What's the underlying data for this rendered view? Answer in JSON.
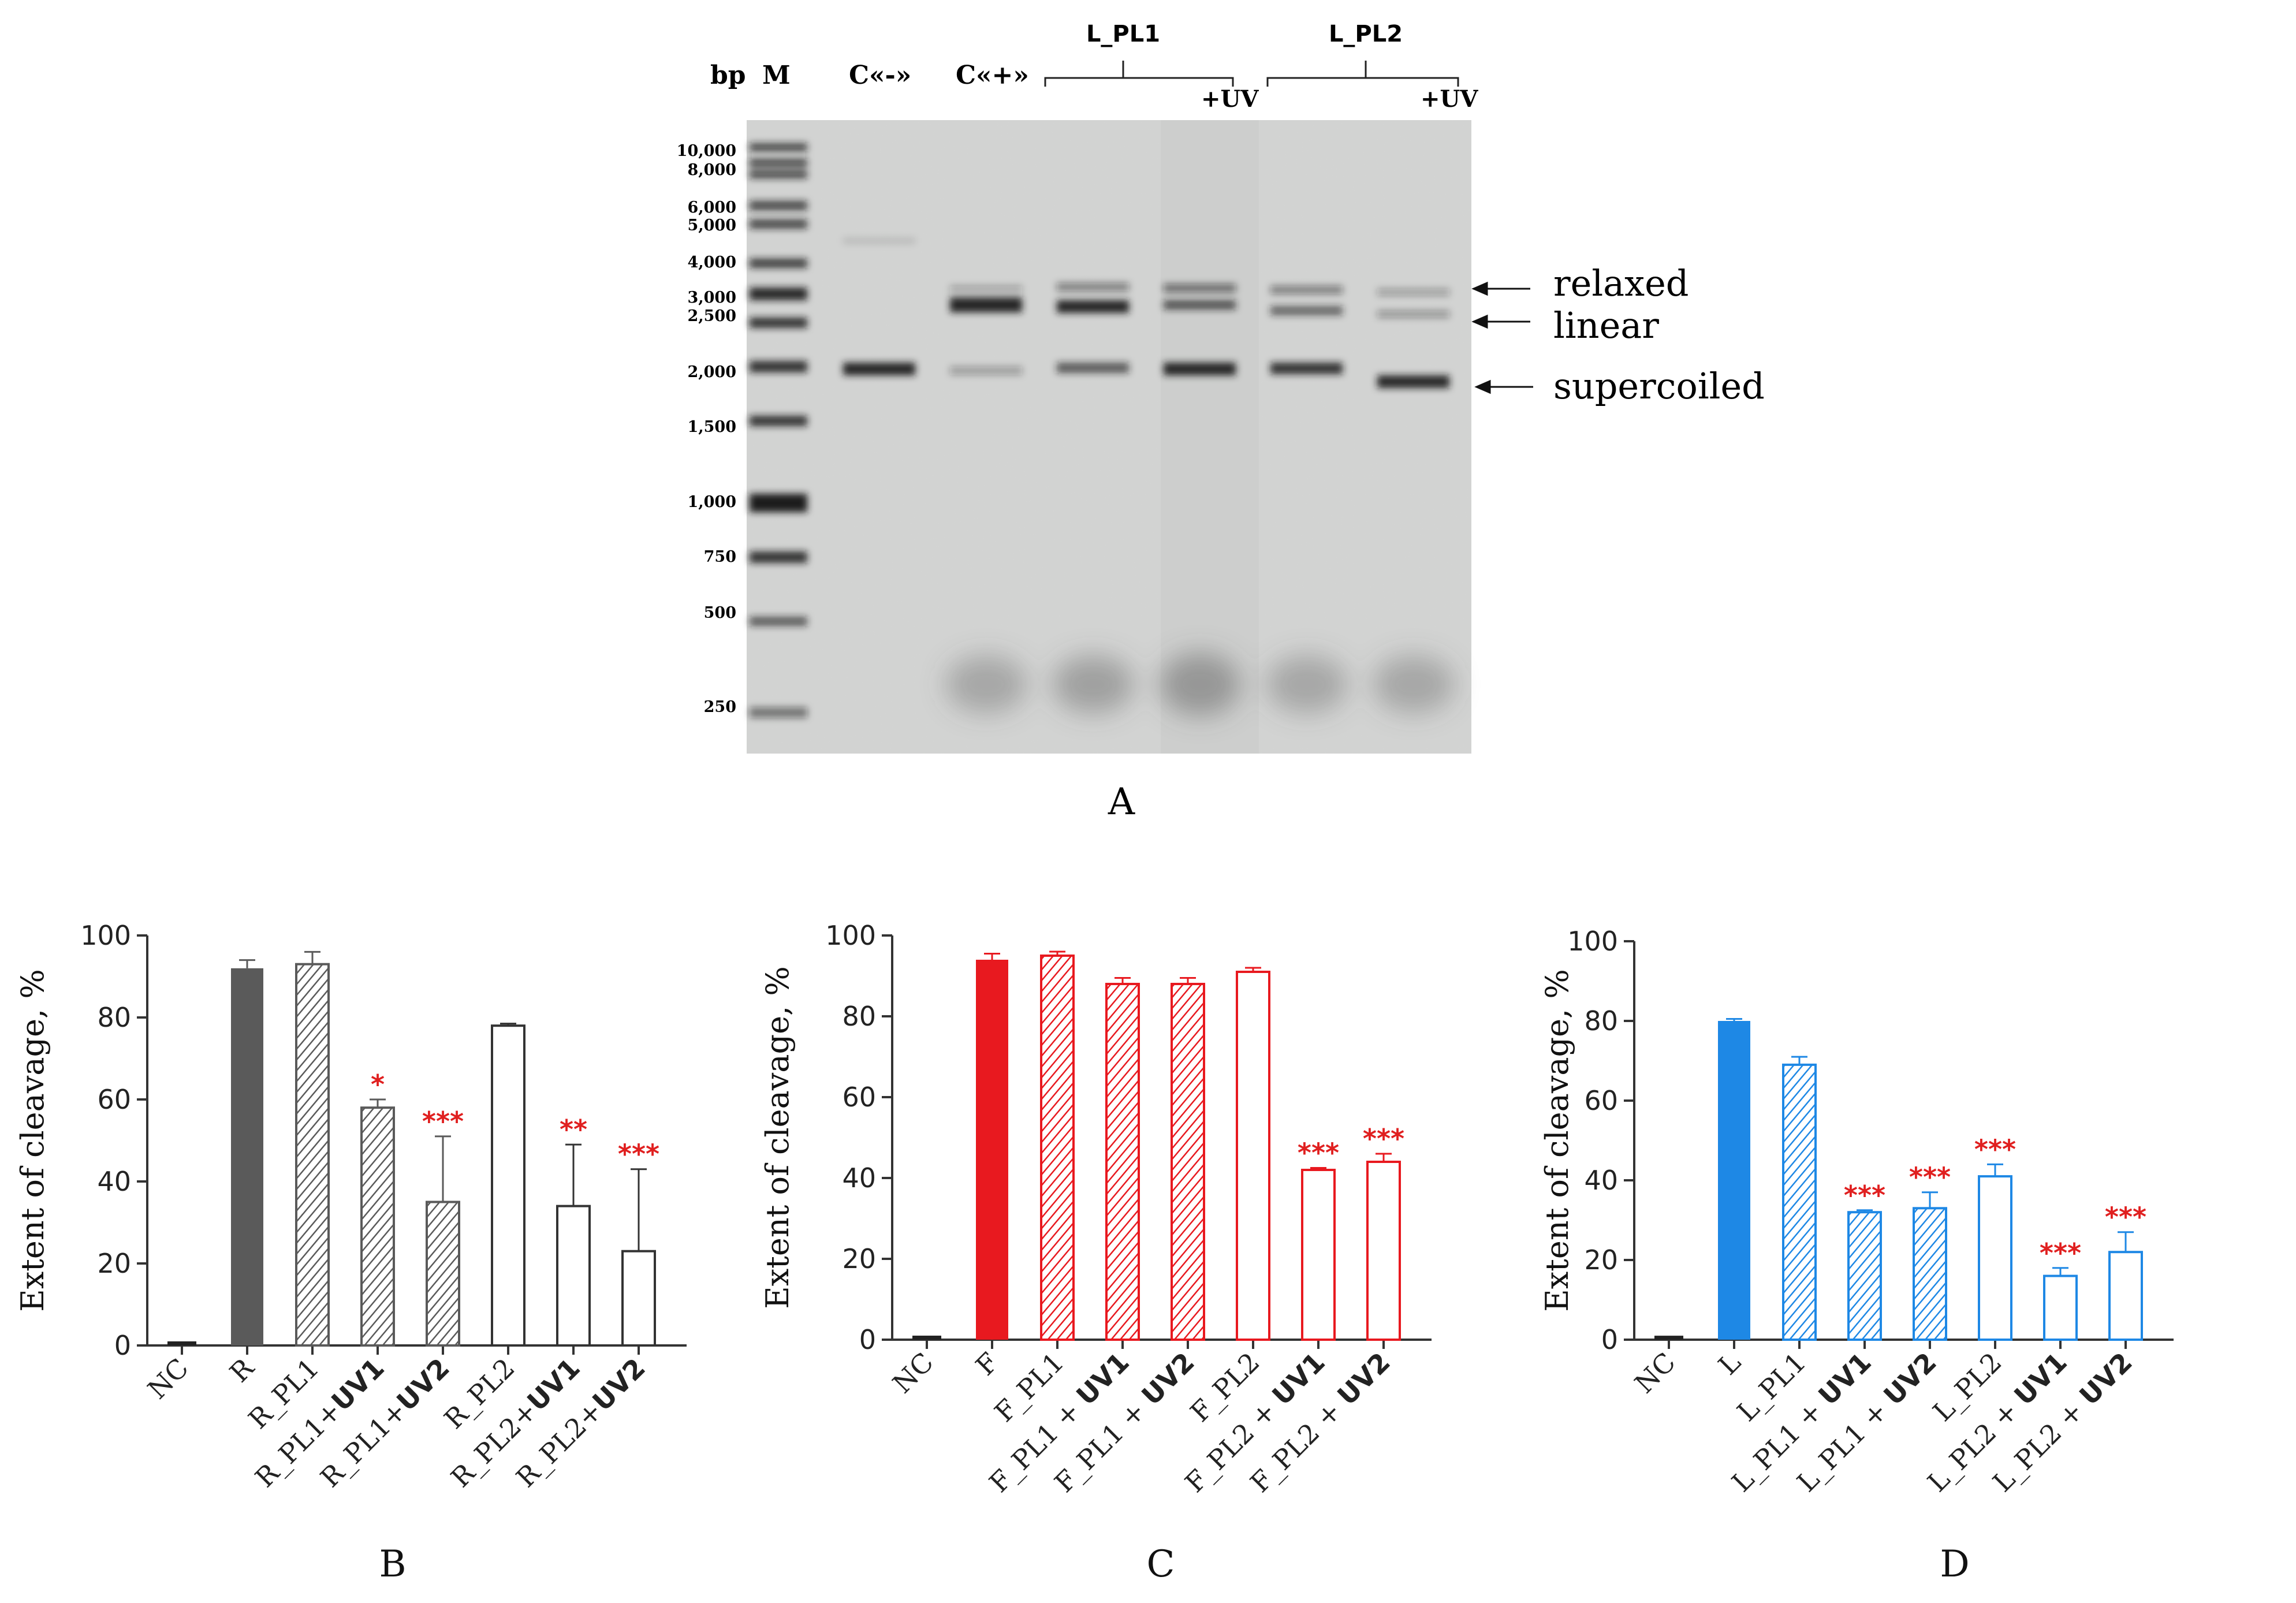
{
  "gel": {
    "panel_label": "A",
    "header_labels": {
      "bp": "bp",
      "marker": "M",
      "neg": "C«-»",
      "pos": "C«+»"
    },
    "groups": [
      {
        "label": "L_PL1",
        "uv": "+UV"
      },
      {
        "label": "L_PL2",
        "uv": "+UV"
      }
    ],
    "ladder_bp": [
      "10,000",
      "8,000",
      "6,000",
      "5,000",
      "4,000",
      "3,000",
      "2,500",
      "2,000",
      "1,500",
      "1,000",
      "750",
      "500",
      "250"
    ],
    "band_arrows": [
      "relaxed",
      "linear",
      "supercoiled"
    ]
  },
  "colors": {
    "R": "#5a5a5a",
    "F": "#e8191f",
    "L": "#1e88e5",
    "stars": "#e02020",
    "axis": "#333333"
  },
  "chart_data": [
    {
      "type": "bar",
      "panel": "B",
      "categories": [
        "NC",
        "R",
        "R_PL1",
        "R_PL1+UV1",
        "R_PL1+UV2",
        "R_PL2",
        "R_PL2+UV1",
        "R_PL2+UV2"
      ],
      "category_parts": [
        [
          "NC",
          ""
        ],
        [
          "R",
          ""
        ],
        [
          "R_PL1",
          ""
        ],
        [
          "R_PL1+",
          "UV1"
        ],
        [
          "R_PL1+",
          "UV2"
        ],
        [
          "R_PL2",
          ""
        ],
        [
          "R_PL2+",
          "UV1"
        ],
        [
          "R_PL2+",
          "UV2"
        ]
      ],
      "values": [
        1,
        92,
        93,
        58,
        35,
        78,
        34,
        23
      ],
      "errors": [
        0,
        2,
        3,
        2,
        16,
        0.5,
        15,
        20
      ],
      "styles": [
        "solid",
        "solid",
        "hatch",
        "hatch",
        "hatch",
        "open",
        "open",
        "open"
      ],
      "significance": [
        "",
        "",
        "",
        "*",
        "***",
        "",
        "**",
        "***"
      ],
      "ylabel": "Extent of cleavage, %",
      "ylim": [
        0,
        100
      ],
      "yticks": [
        "0",
        "20",
        "40",
        "60",
        "80",
        "100"
      ],
      "color": "R"
    },
    {
      "type": "bar",
      "panel": "C",
      "categories": [
        "NC",
        "F",
        "F_PL1",
        "F_PL1 + UV1",
        "F_PL1 + UV2",
        "F_PL2",
        "F_PL2 + UV1",
        "F_PL2 + UV2"
      ],
      "category_parts": [
        [
          "NC",
          ""
        ],
        [
          "F",
          ""
        ],
        [
          "F_PL1",
          ""
        ],
        [
          "F_PL1 + ",
          "UV1"
        ],
        [
          "F_PL1 + ",
          "UV2"
        ],
        [
          "F_PL2",
          ""
        ],
        [
          "F_PL2 + ",
          "UV1"
        ],
        [
          "F_PL2 + ",
          "UV2"
        ]
      ],
      "values": [
        1,
        94,
        95,
        88,
        88,
        91,
        42,
        44
      ],
      "errors": [
        0,
        1.5,
        1,
        1.5,
        1.5,
        1,
        0.5,
        2
      ],
      "styles": [
        "solid",
        "solid",
        "hatch",
        "hatch",
        "hatch",
        "open",
        "open",
        "open"
      ],
      "significance": [
        "",
        "",
        "",
        "",
        "",
        "",
        "***",
        "***"
      ],
      "ylabel": "Extent of cleavage, %",
      "ylim": [
        0,
        100
      ],
      "yticks": [
        "0",
        "20",
        "40",
        "60",
        "80",
        "100"
      ],
      "color": "F"
    },
    {
      "type": "bar",
      "panel": "D",
      "categories": [
        "NC",
        "L",
        "L_PL1",
        "L_PL1 + UV1",
        "L_PL1 + UV2",
        "L_PL2",
        "L_PL2 + UV1",
        "L_PL2 + UV2"
      ],
      "category_parts": [
        [
          "NC",
          ""
        ],
        [
          "L",
          ""
        ],
        [
          "L_PL1",
          ""
        ],
        [
          "L_PL1 + ",
          "UV1"
        ],
        [
          "L_PL1 + ",
          "UV2"
        ],
        [
          "L_PL2",
          ""
        ],
        [
          "L_PL2 + ",
          "UV1"
        ],
        [
          "L_PL2 + ",
          "UV2"
        ]
      ],
      "values": [
        1,
        80,
        69,
        32,
        33,
        41,
        16,
        22
      ],
      "errors": [
        0,
        0.5,
        2,
        0.5,
        4,
        3,
        2,
        5
      ],
      "styles": [
        "solid",
        "solid",
        "hatch",
        "hatch",
        "hatch",
        "open",
        "open",
        "open"
      ],
      "significance": [
        "",
        "",
        "",
        "***",
        "***",
        "***",
        "***",
        "***"
      ],
      "ylabel": "Extent of cleavage, %",
      "ylim": [
        0,
        100
      ],
      "yticks": [
        "0",
        "20",
        "40",
        "60",
        "80",
        "100"
      ],
      "color": "L"
    }
  ]
}
